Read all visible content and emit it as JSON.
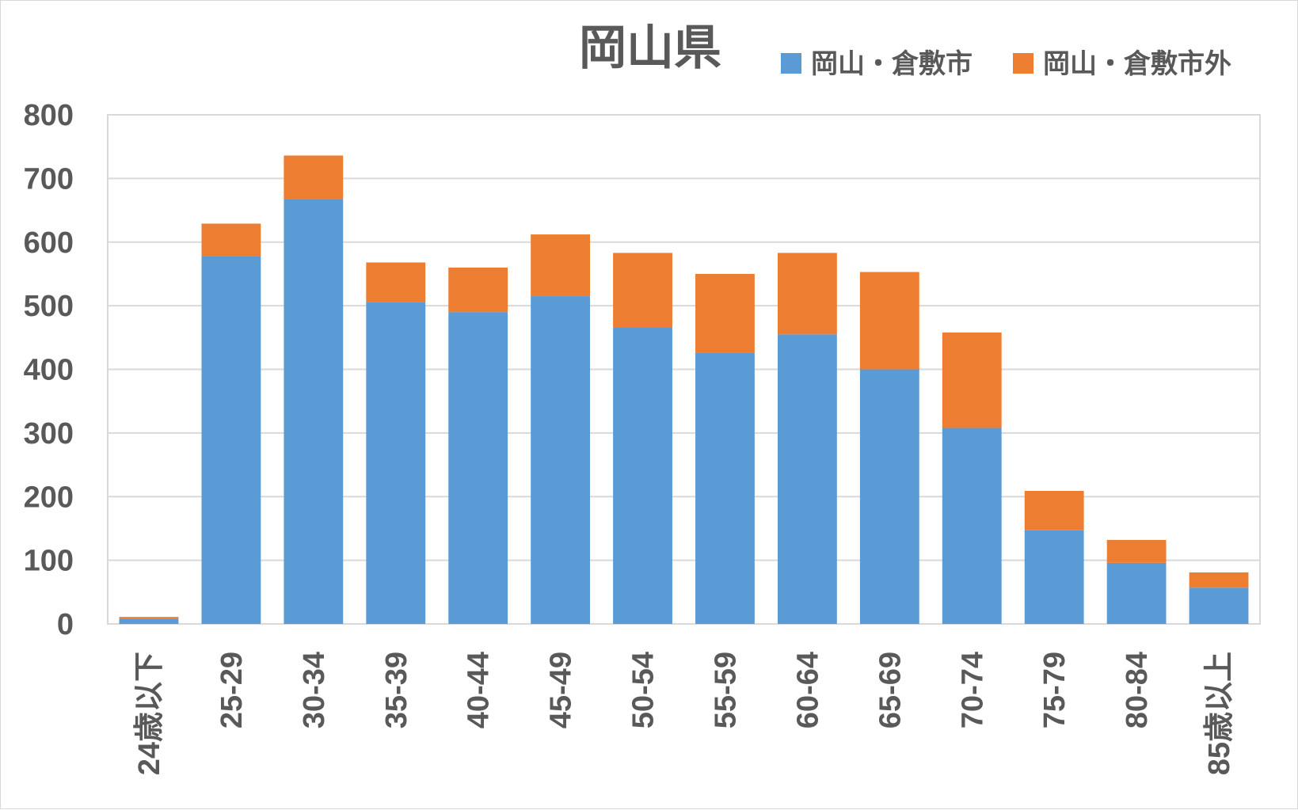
{
  "chart_data": {
    "type": "bar",
    "stacked": true,
    "title": "岡山県",
    "categories": [
      "24歳以下",
      "25-29",
      "30-34",
      "35-39",
      "40-44",
      "45-49",
      "50-54",
      "55-59",
      "60-64",
      "65-69",
      "70-74",
      "75-79",
      "80-84",
      "85歳以上"
    ],
    "series": [
      {
        "name": "岡山・倉敷市",
        "color": "#5b9bd5",
        "values": [
          8,
          578,
          668,
          506,
          490,
          515,
          466,
          426,
          455,
          400,
          308,
          147,
          96,
          57
        ]
      },
      {
        "name": "岡山・倉敷市外",
        "color": "#ed7d31",
        "values": [
          3,
          51,
          68,
          62,
          70,
          97,
          117,
          124,
          128,
          153,
          150,
          62,
          36,
          24
        ]
      }
    ],
    "ylim": [
      0,
      800
    ],
    "yticks": [
      "0",
      "100",
      "200",
      "300",
      "400",
      "500",
      "600",
      "700",
      "800"
    ],
    "xlabel": "",
    "ylabel": "",
    "grid": true,
    "legend_position": "top-right"
  }
}
